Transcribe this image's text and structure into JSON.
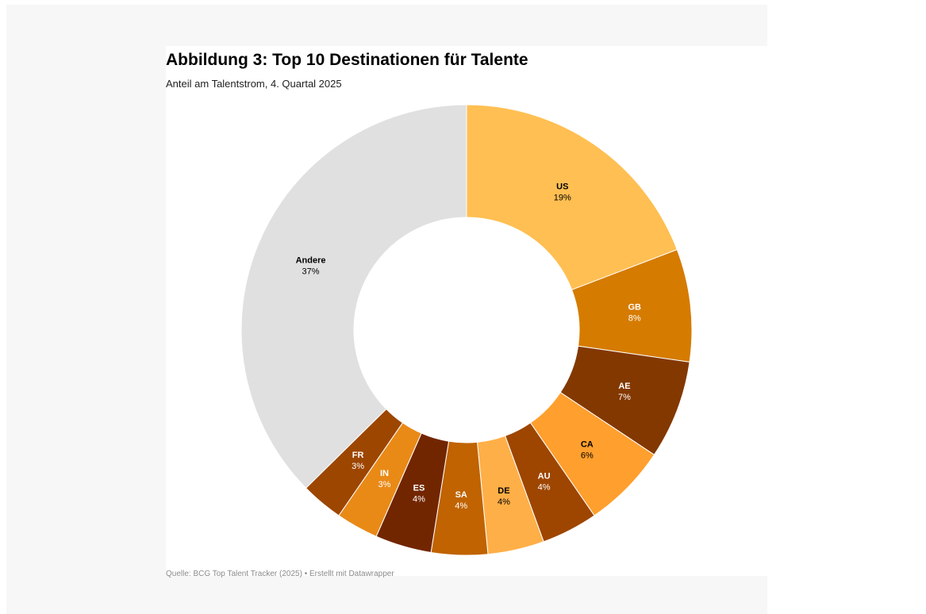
{
  "header": {
    "title": "Abbildung 3: Top 10 Destinationen für Talente",
    "subtitle": "Anteil am Talentstrom, 4. Quartal 2025"
  },
  "footer": {
    "source": "Quelle: BCG Top Talent Tracker (2025) • Erstellt mit Datawrapper"
  },
  "chart_data": {
    "type": "pie",
    "style": "donut",
    "title": "Abbildung 3: Top 10 Destinationen für Talente",
    "subtitle": "Anteil am Talentstrom, 4. Quartal 2025",
    "unit": "%",
    "slices": [
      {
        "label": "US",
        "value": 19,
        "display": "19%",
        "color": "#ffbf52",
        "text_color": "#000000"
      },
      {
        "label": "GB",
        "value": 8,
        "display": "8%",
        "color": "#d57b00",
        "text_color": "#ffffff"
      },
      {
        "label": "AE",
        "value": 7,
        "display": "7%",
        "color": "#833800",
        "text_color": "#ffffff"
      },
      {
        "label": "CA",
        "value": 6,
        "display": "6%",
        "color": "#ff9f2d",
        "text_color": "#000000"
      },
      {
        "label": "AU",
        "value": 4,
        "display": "4%",
        "color": "#9e4600",
        "text_color": "#ffffff"
      },
      {
        "label": "DE",
        "value": 4,
        "display": "4%",
        "color": "#ffaf47",
        "text_color": "#000000"
      },
      {
        "label": "SA",
        "value": 4,
        "display": "4%",
        "color": "#c06300",
        "text_color": "#ffffff"
      },
      {
        "label": "ES",
        "value": 4,
        "display": "4%",
        "color": "#722600",
        "text_color": "#ffffff"
      },
      {
        "label": "IN",
        "value": 3,
        "display": "3%",
        "color": "#e98a17",
        "text_color": "#ffffff"
      },
      {
        "label": "FR",
        "value": 3,
        "display": "3%",
        "color": "#9d4600",
        "text_color": "#ffffff"
      },
      {
        "label": "Andere",
        "value": 37,
        "display": "37%",
        "color": "#e0e0e0",
        "text_color": "#000000"
      }
    ]
  }
}
